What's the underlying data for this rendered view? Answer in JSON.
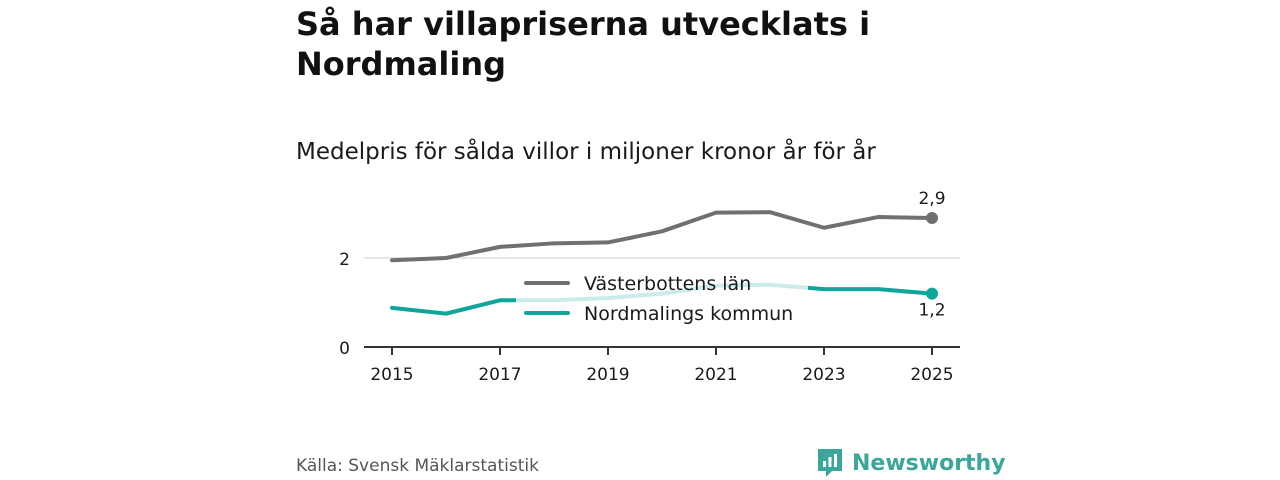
{
  "title": "Så har villapriserna utvecklats i Nordmaling",
  "subtitle": "Medelpris för sålda villor i miljoner kronor år för år",
  "source": "Källa: Svensk Mäklarstatistik",
  "brand": "Newsworthy",
  "colors": {
    "county": "#707070",
    "municipality": "#0ea59a",
    "axis": "#333333",
    "grid": "#dddddd"
  },
  "chart_data": {
    "type": "line",
    "title": "Så har villapriserna utvecklats i Nordmaling",
    "subtitle": "Medelpris för sålda villor i miljoner kronor år för år",
    "xlabel": "",
    "ylabel": "",
    "x": [
      2015,
      2016,
      2017,
      2018,
      2019,
      2020,
      2021,
      2022,
      2023,
      2024,
      2025
    ],
    "xticks": [
      "2015",
      "2017",
      "2019",
      "2021",
      "2023",
      "2025"
    ],
    "yticks": [
      "0",
      "2"
    ],
    "ylim": [
      0,
      3.3
    ],
    "grid": true,
    "legend": "center",
    "series": [
      {
        "name": "Västerbottens län",
        "values": [
          1.95,
          2.0,
          2.25,
          2.33,
          2.35,
          2.6,
          3.02,
          3.03,
          2.68,
          2.92,
          2.9
        ],
        "end_label": "2,9"
      },
      {
        "name": "Nordmalings kommun",
        "values": [
          0.88,
          0.75,
          1.05,
          1.05,
          1.1,
          1.2,
          1.38,
          1.4,
          1.3,
          1.3,
          1.2
        ],
        "end_label": "1,2"
      }
    ]
  }
}
